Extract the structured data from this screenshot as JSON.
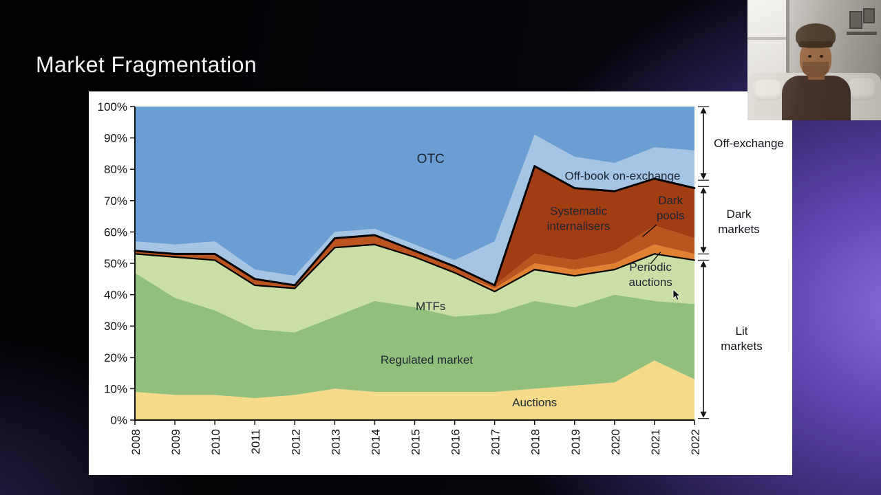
{
  "slide": {
    "title": "Market Fragmentation"
  },
  "chart_data": {
    "type": "area",
    "stacked": true,
    "x": [
      2008,
      2009,
      2010,
      2011,
      2012,
      2013,
      2014,
      2015,
      2016,
      2017,
      2018,
      2019,
      2020,
      2021,
      2022
    ],
    "xtick_labels": [
      "2008",
      "2009",
      "2010",
      "2011",
      "2012",
      "2013",
      "2014",
      "2015",
      "2016",
      "2017",
      "2018",
      "2019",
      "2020",
      "2021",
      "2022"
    ],
    "ylim": [
      0,
      100
    ],
    "ytick_labels": [
      "0%",
      "10%",
      "20%",
      "30%",
      "40%",
      "50%",
      "60%",
      "70%",
      "80%",
      "90%",
      "100%"
    ],
    "axis_color": "#111111",
    "label_color": "#1b2533",
    "series": [
      {
        "name": "Auctions",
        "color": "#f5da8a",
        "values": [
          9,
          8,
          8,
          7,
          8,
          10,
          9,
          9,
          9,
          9,
          10,
          11,
          12,
          19,
          13
        ]
      },
      {
        "name": "Regulated market",
        "color": "#92c07c",
        "values": [
          38,
          31,
          27,
          22,
          20,
          23,
          29,
          27,
          24,
          25,
          28,
          25,
          28,
          19,
          24
        ]
      },
      {
        "name": "MTFs",
        "color": "#cadfa5",
        "values": [
          6,
          13,
          16,
          14,
          14,
          22,
          18,
          16,
          14,
          7,
          10,
          10,
          8,
          15,
          14
        ]
      },
      {
        "name": "Periodic auctions",
        "color": "#e08030",
        "values": [
          0,
          0,
          0,
          0,
          0,
          0,
          0,
          0,
          0,
          1,
          2,
          2,
          2,
          3,
          2
        ]
      },
      {
        "name": "Dark pools",
        "color": "#bc5420",
        "values": [
          1,
          1,
          2,
          2,
          1,
          3,
          3,
          2,
          2,
          1,
          3,
          3,
          4,
          6,
          5
        ]
      },
      {
        "name": "Systematic internalisers",
        "color": "#a23c12",
        "values": [
          0,
          0,
          0,
          0,
          0,
          0,
          0,
          0,
          0,
          0,
          28,
          23,
          19,
          15,
          16
        ]
      },
      {
        "name": "Off-book on-exchange",
        "color": "#a6c4e4",
        "values": [
          3,
          3,
          4,
          3,
          3,
          2,
          2,
          2,
          2,
          14,
          10,
          10,
          9,
          10,
          12
        ]
      },
      {
        "name": "OTC",
        "color": "#6b9fd4",
        "values": [
          43,
          44,
          43,
          52,
          54,
          40,
          39,
          44,
          49,
          43,
          9,
          16,
          18,
          13,
          14
        ]
      }
    ],
    "outlines": [
      {
        "after_series": "MTFs",
        "index": 2,
        "width": 2.2
      },
      {
        "after_series": "Systematic internalisers",
        "index": 5,
        "width": 3
      }
    ],
    "area_labels": [
      {
        "lines": [
          "OTC"
        ],
        "x": 2015.4,
        "y": 83.5,
        "size": 19
      },
      {
        "lines": [
          "Off-book on-exchange"
        ],
        "x": 2020.2,
        "y": 78,
        "size": 17
      },
      {
        "lines": [
          "Systematic",
          "internalisers"
        ],
        "x": 2019.1,
        "y": 64.3,
        "size": 17
      },
      {
        "lines": [
          "Dark",
          "pools"
        ],
        "x": 2021.4,
        "y": 67.8,
        "size": 17
      },
      {
        "lines": [
          "Periodic",
          "auctions"
        ],
        "x": 2020.9,
        "y": 46.5,
        "size": 17
      },
      {
        "lines": [
          "MTFs"
        ],
        "x": 2015.4,
        "y": 36.4,
        "size": 17
      },
      {
        "lines": [
          "Regulated market"
        ],
        "x": 2015.3,
        "y": 19.3,
        "size": 17
      },
      {
        "lines": [
          "Auctions"
        ],
        "x": 2018.0,
        "y": 5.7,
        "size": 17
      }
    ],
    "leader_lines": [
      {
        "x1": 2021.05,
        "y1": 62.3,
        "x2": 2020.7,
        "y2": 58.5
      },
      {
        "x1": 2020.9,
        "y1": 49.8,
        "x2": 2021.15,
        "y2": 53.6
      }
    ],
    "brackets": [
      {
        "name": "Off-exchange",
        "from": 100,
        "to": 76.5
      },
      {
        "name": "Dark markets",
        "from": 74.5,
        "to": 53
      },
      {
        "name": "Lit markets",
        "from": 51,
        "to": 0.5
      }
    ]
  },
  "group_labels": {
    "off_exchange": {
      "lines": [
        "Off-exchange"
      ]
    },
    "dark": {
      "lines": [
        "Dark",
        "markets"
      ]
    },
    "lit": {
      "lines": [
        "Lit",
        "markets"
      ]
    }
  }
}
